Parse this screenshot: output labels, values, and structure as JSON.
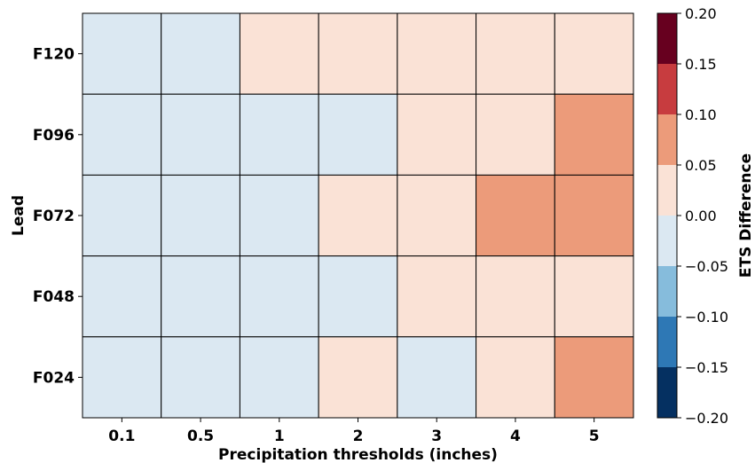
{
  "chart_data": {
    "type": "heatmap",
    "title": "",
    "xlabel": "Precipitation thresholds (inches)",
    "ylabel": "Lead",
    "x_categories": [
      "0.1",
      "0.5",
      "1",
      "2",
      "3",
      "4",
      "5"
    ],
    "y_categories": [
      "F120",
      "F096",
      "F072",
      "F048",
      "F024"
    ],
    "values": [
      [
        -0.02,
        -0.02,
        0.02,
        0.02,
        0.02,
        0.02,
        0.02
      ],
      [
        -0.02,
        -0.02,
        -0.02,
        -0.02,
        0.02,
        0.02,
        0.07
      ],
      [
        -0.02,
        -0.02,
        -0.02,
        0.02,
        0.02,
        0.07,
        0.07
      ],
      [
        -0.02,
        -0.02,
        -0.02,
        -0.02,
        0.02,
        0.02,
        0.02
      ],
      [
        -0.02,
        -0.02,
        -0.02,
        0.02,
        -0.02,
        0.02,
        0.07
      ]
    ],
    "colorbar": {
      "label": "ETS Difference",
      "range": [
        -0.2,
        0.2
      ],
      "boundaries": [
        -0.2,
        -0.15,
        -0.1,
        -0.05,
        0.0,
        0.05,
        0.1,
        0.15,
        0.2
      ],
      "colors": [
        "#053061",
        "#2e78b5",
        "#86bcdc",
        "#dbe8f2",
        "#fae2d6",
        "#ec9b7a",
        "#c73c3f",
        "#67001f"
      ],
      "tick_labels": [
        "−0.20",
        "−0.15",
        "−0.10",
        "−0.05",
        "0.00",
        "0.05",
        "0.10",
        "0.15",
        "0.20"
      ]
    },
    "grid_color": "#000000"
  }
}
